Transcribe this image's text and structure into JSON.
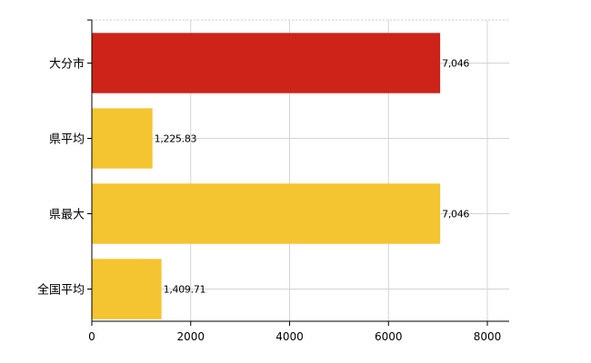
{
  "chart_data": {
    "type": "bar",
    "orientation": "horizontal",
    "categories": [
      "大分市",
      "県平均",
      "県最大",
      "全国平均"
    ],
    "values": [
      7046,
      1225.83,
      7046,
      1409.71
    ],
    "value_labels": [
      "7,046",
      "1,225.83",
      "7,046",
      "1,409.71"
    ],
    "bar_colors": [
      "#cc2418",
      "#f5c431",
      "#f5c431",
      "#f5c431"
    ],
    "xlim": [
      0,
      8000
    ],
    "xticks": [
      0,
      2000,
      4000,
      6000,
      8000
    ],
    "xtick_labels": [
      "0",
      "2000",
      "4000",
      "6000",
      "8000"
    ],
    "grid": true,
    "title": "",
    "xlabel": "",
    "ylabel": ""
  }
}
